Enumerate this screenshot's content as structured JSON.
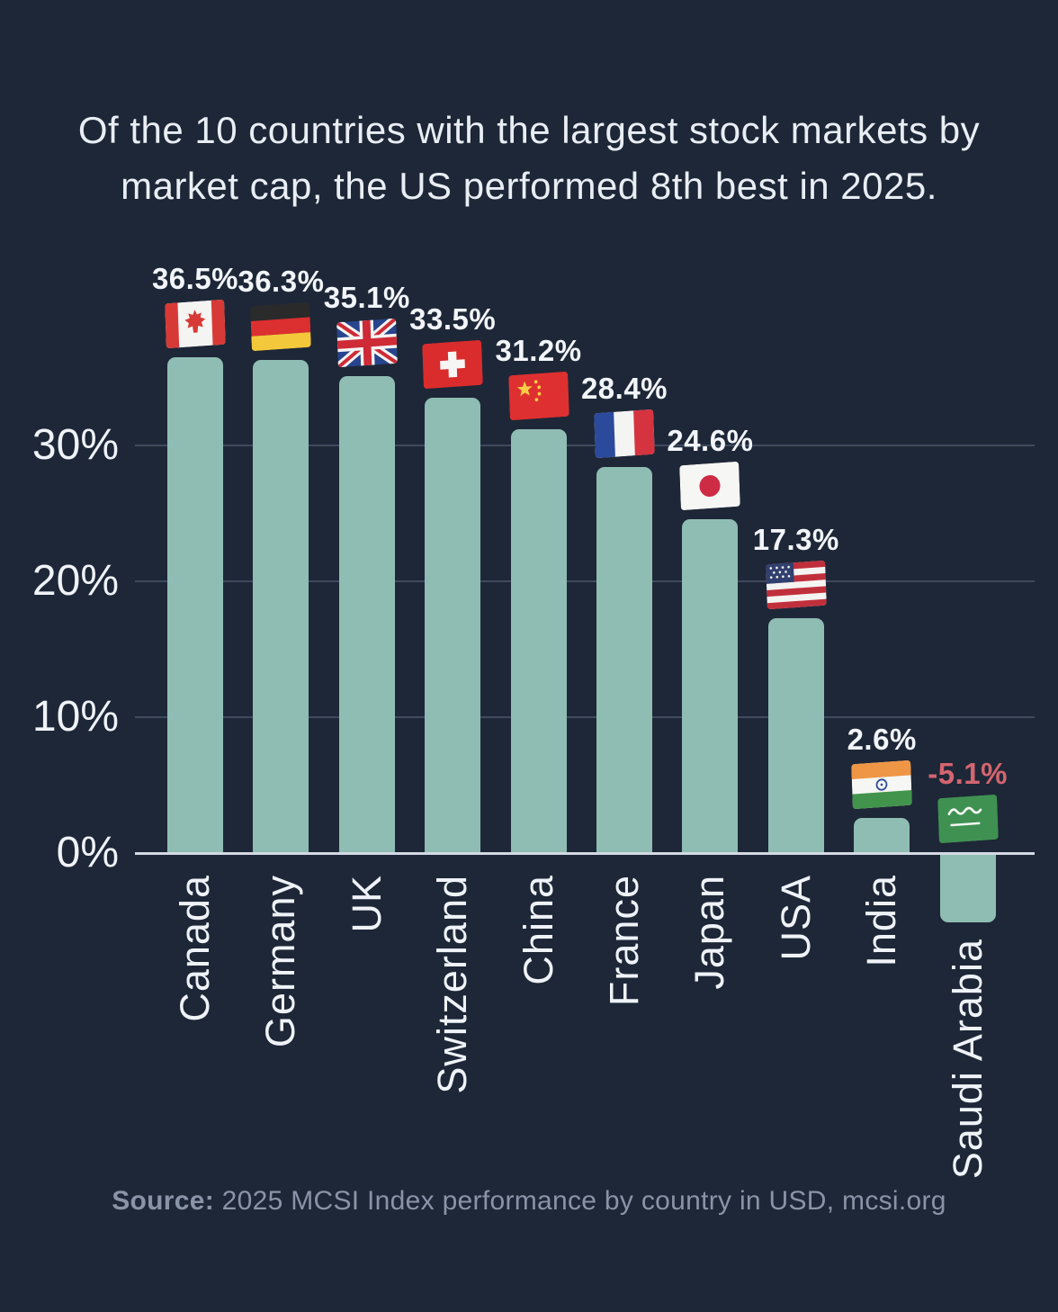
{
  "title": {
    "full": "Of the 10 countries with the largest stock markets by market cap, the US performed 8th best in 2025.",
    "lines": [
      "Of the 10 countries with the largest stock markets by",
      "market cap, the US performed 8th best in 2025."
    ]
  },
  "source": {
    "prefix": "Source:",
    "text": " 2025 MCSI Index performance by country in USD, mcsi.org"
  },
  "colors": {
    "background": "#1E2737",
    "bar": "#8FBDB3",
    "gridline": "#3E4A5E",
    "axis_line": "#D3DAE4",
    "text": "#EFF3F8",
    "negative_label": "#D46570",
    "source_text": "#8A94A8"
  },
  "chart_data": {
    "type": "bar",
    "title": "Of the 10 countries with the largest stock markets by market cap, the US performed 8th best in 2025.",
    "xlabel": "",
    "ylabel": "",
    "categories": [
      "Canada",
      "Germany",
      "UK",
      "Switzerland",
      "China",
      "France",
      "Japan",
      "USA",
      "India",
      "Saudi Arabia"
    ],
    "values": [
      36.5,
      36.3,
      35.1,
      33.5,
      31.2,
      28.4,
      24.6,
      17.3,
      2.6,
      -5.1
    ],
    "value_labels": [
      "36.5%",
      "36.3%",
      "35.1%",
      "33.5%",
      "31.2%",
      "28.4%",
      "24.6%",
      "17.3%",
      "2.6%",
      "-5.1%"
    ],
    "flag_icons": [
      "canada-flag-icon",
      "germany-flag-icon",
      "uk-flag-icon",
      "switzerland-flag-icon",
      "china-flag-icon",
      "france-flag-icon",
      "japan-flag-icon",
      "usa-flag-icon",
      "india-flag-icon",
      "saudi-arabia-flag-icon"
    ],
    "y_ticks": [
      {
        "label": "30%",
        "value": 30
      },
      {
        "label": "20%",
        "value": 20
      },
      {
        "label": "10%",
        "value": 10
      },
      {
        "label": "0%",
        "value": 0
      }
    ],
    "ylim": [
      -10,
      40
    ],
    "grid": true,
    "legend": false
  }
}
